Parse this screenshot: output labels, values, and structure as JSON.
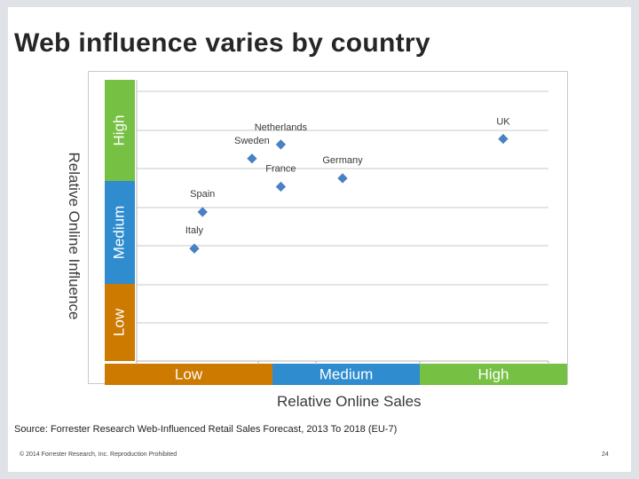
{
  "page": {
    "title": "Web influence varies by country",
    "source": "Source: Forrester Research Web-Influenced Retail Sales Forecast, 2013 To 2018 (EU-7)",
    "footer_left": "© 2014 Forrester Research, Inc. Reproduction Prohibited",
    "footer_right": "24"
  },
  "chart_data": {
    "type": "scatter",
    "xlabel": "Relative Online Sales",
    "ylabel": "Relative Online Influence",
    "x_bands": [
      "Low",
      "Medium",
      "High"
    ],
    "y_bands": [
      "Low",
      "Medium",
      "High"
    ],
    "xlim": [
      0,
      100
    ],
    "ylim": [
      0,
      100
    ],
    "grid": "horizontal",
    "colors": {
      "low": "#cc7a00",
      "medium": "#2e8ccf",
      "high": "#76c043",
      "marker": "#4a80c4"
    },
    "points": [
      {
        "label": "Italy",
        "x": 14,
        "y": 40
      },
      {
        "label": "Spain",
        "x": 16,
        "y": 53
      },
      {
        "label": "Sweden",
        "x": 28,
        "y": 72
      },
      {
        "label": "France",
        "x": 35,
        "y": 62
      },
      {
        "label": "Netherlands",
        "x": 35,
        "y": 77
      },
      {
        "label": "Germany",
        "x": 50,
        "y": 65
      },
      {
        "label": "UK",
        "x": 89,
        "y": 79
      }
    ]
  }
}
